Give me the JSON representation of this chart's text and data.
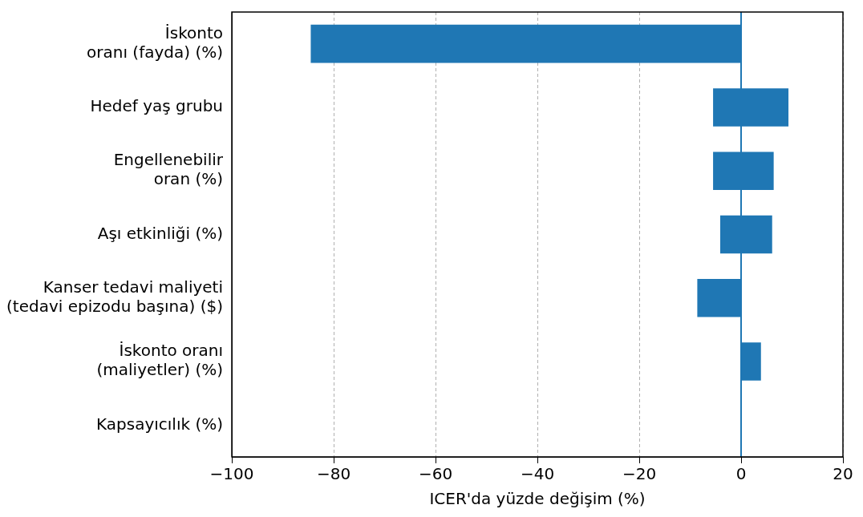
{
  "chart_data": {
    "type": "bar",
    "orientation": "horizontal",
    "xlabel": "ICER'da yüzde değişim (%)",
    "categories": [
      "İskonto\noranı (fayda) (%)",
      "Hedef yaş grubu",
      "Engellenebilir\noran (%)",
      "Aşı etkinliği (%)",
      "Kanser tedavi maliyeti\n(tedavi epizodu başına) ($)",
      "İskonto oranı\n(maliyetler) (%)",
      "Kapsayıcılık (%)"
    ],
    "values": [
      84.5,
      14.8,
      11.9,
      10.2,
      8.6,
      3.9,
      null
    ],
    "base": [
      -84.5,
      -5.5,
      -5.5,
      -4.1,
      -8.6,
      0,
      null
    ],
    "color": "#1f77b4",
    "xlim": [
      -100,
      20
    ],
    "xticks": [
      -100,
      -80,
      -60,
      -40,
      -20,
      0,
      20
    ],
    "grid": "x",
    "legend": false,
    "ref_lines": [
      {
        "axis": "x",
        "value": 0,
        "color": "#1f77b4"
      }
    ]
  }
}
